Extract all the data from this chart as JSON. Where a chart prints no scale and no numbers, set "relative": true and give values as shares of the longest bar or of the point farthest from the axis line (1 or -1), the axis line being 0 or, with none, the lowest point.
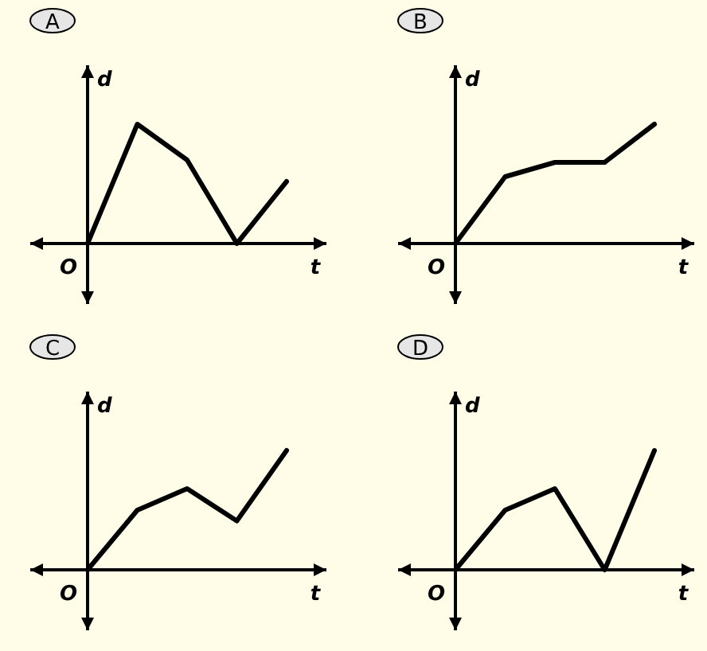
{
  "chart_data": [
    {
      "type": "line",
      "title": "A",
      "xlabel": "t",
      "ylabel": "d",
      "annotations": [
        "O"
      ],
      "relative": true,
      "categories": [
        null,
        null,
        null,
        null,
        null
      ],
      "series": [
        {
          "color": "#000000",
          "values": [
            0,
            1,
            0.7,
            0,
            0.52
          ]
        }
      ]
    },
    {
      "type": "line",
      "title": "B",
      "xlabel": "t",
      "ylabel": "d",
      "annotations": [
        "O"
      ],
      "relative": true,
      "categories": [
        null,
        null,
        null,
        null,
        null
      ],
      "series": [
        {
          "color": "#000000",
          "values": [
            0,
            0.56,
            0.68,
            0.68,
            1
          ]
        }
      ]
    },
    {
      "type": "line",
      "title": "C",
      "xlabel": "t",
      "ylabel": "d",
      "annotations": [
        "O"
      ],
      "relative": true,
      "categories": [
        null,
        null,
        null,
        null,
        null
      ],
      "series": [
        {
          "color": "#000000",
          "values": [
            0,
            0.5,
            0.68,
            0.41,
            1
          ]
        }
      ]
    },
    {
      "type": "line",
      "title": "D",
      "xlabel": "t",
      "ylabel": "d",
      "annotations": [
        "O"
      ],
      "relative": true,
      "categories": [
        null,
        null,
        null,
        null,
        null
      ],
      "series": [
        {
          "color": "#000000",
          "values": [
            0,
            0.5,
            0.68,
            0,
            1
          ]
        }
      ]
    }
  ]
}
